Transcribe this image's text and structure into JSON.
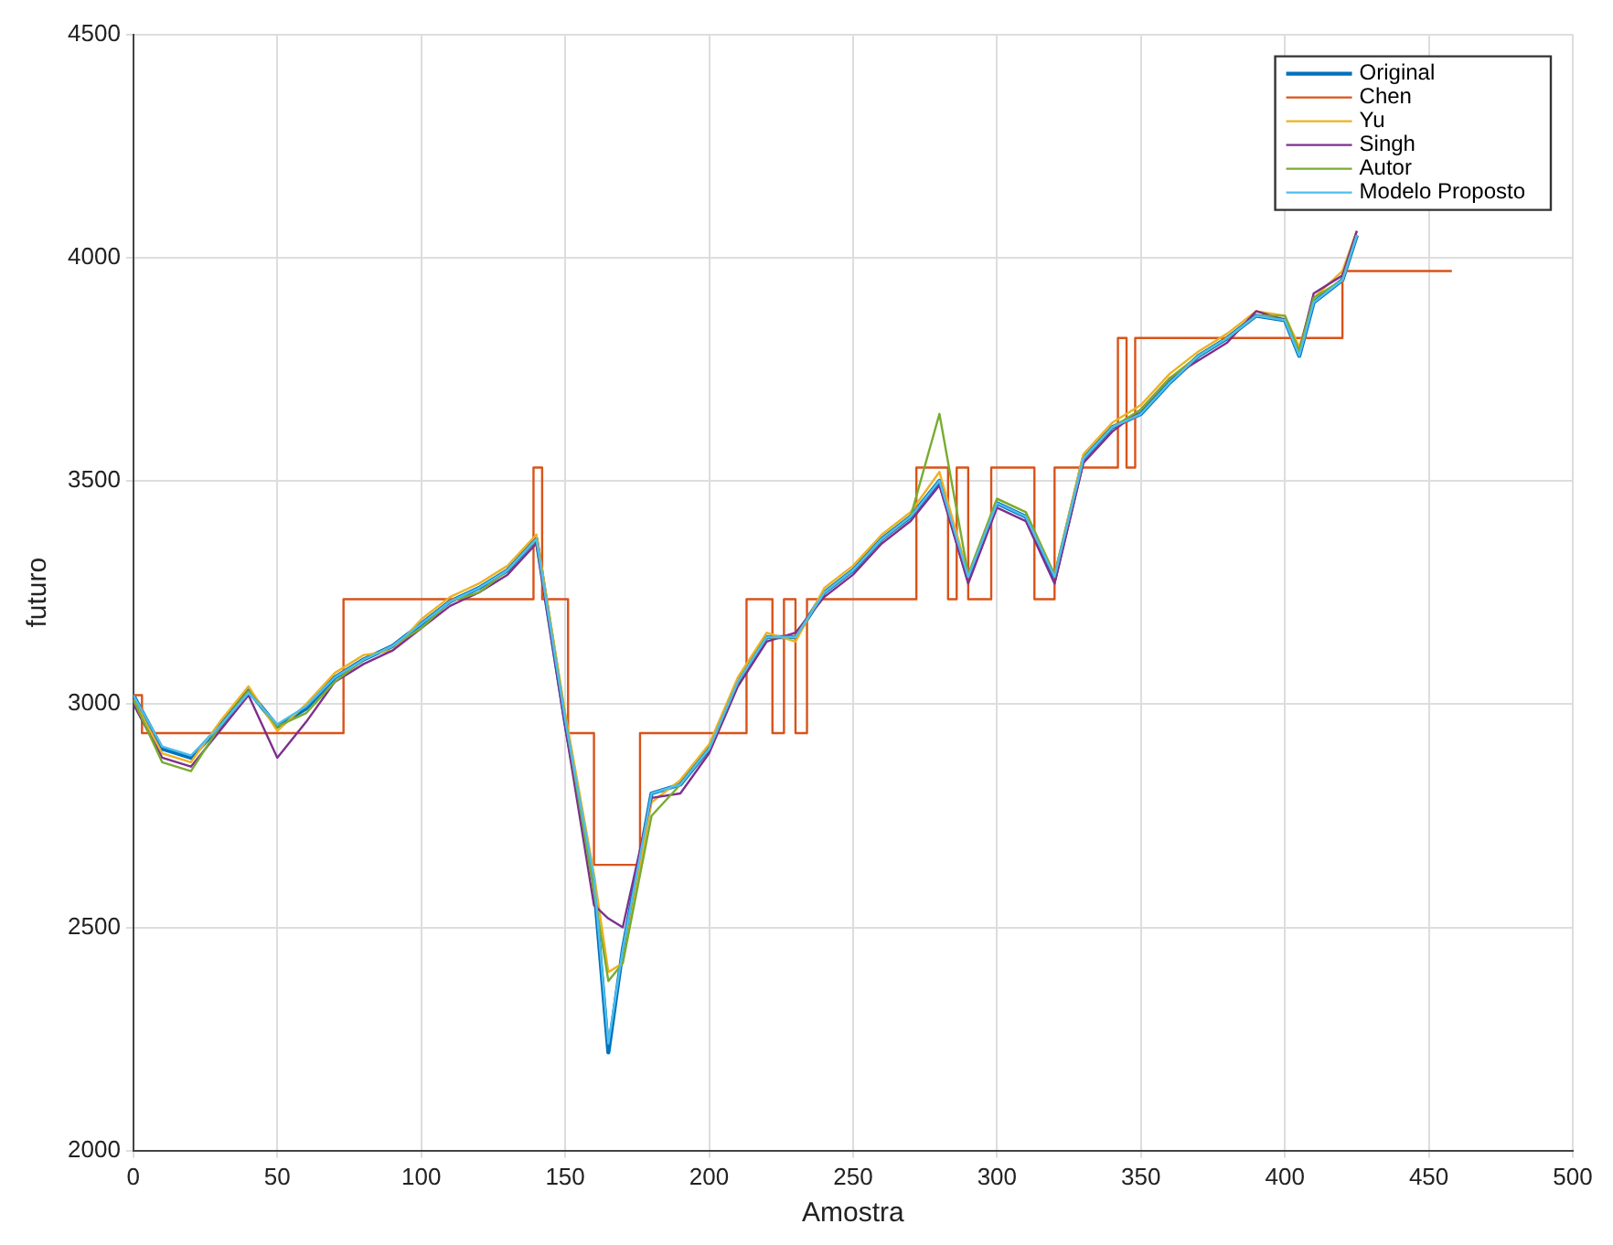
{
  "chart_data": {
    "type": "line",
    "xlabel": "Amostra",
    "ylabel": "futuro",
    "xlim": [
      0,
      500
    ],
    "xticks": [
      0,
      50,
      100,
      150,
      200,
      250,
      300,
      350,
      400,
      450,
      500
    ],
    "ylim": [
      2000,
      4500
    ],
    "yticks": [
      2000,
      2500,
      3000,
      3500,
      4000,
      4500
    ],
    "grid": true,
    "legend": "top right",
    "marker": "none",
    "line_style": "solid",
    "x": [
      0,
      10,
      20,
      30,
      40,
      50,
      60,
      70,
      80,
      90,
      100,
      110,
      120,
      130,
      140,
      150,
      160,
      165,
      170,
      180,
      190,
      200,
      210,
      220,
      230,
      240,
      250,
      260,
      270,
      280,
      290,
      300,
      310,
      320,
      330,
      340,
      350,
      360,
      370,
      380,
      390,
      400,
      405,
      410,
      420,
      425
    ],
    "series": [
      {
        "name": "Original",
        "color": "#0072bd",
        "values": [
          3020,
          2900,
          2880,
          2950,
          3030,
          2950,
          2990,
          3060,
          3100,
          3130,
          3180,
          3230,
          3260,
          3300,
          3370,
          2960,
          2600,
          2220,
          2450,
          2800,
          2820,
          2900,
          3050,
          3150,
          3150,
          3250,
          3300,
          3370,
          3420,
          3500,
          3280,
          3450,
          3420,
          3280,
          3550,
          3620,
          3650,
          3720,
          3780,
          3820,
          3870,
          3860,
          3780,
          3900,
          3950,
          4050
        ]
      },
      {
        "name": "Chen",
        "color": "#d95319",
        "type": "step",
        "x": [
          0,
          3,
          73,
          139,
          142,
          151,
          160,
          176,
          213,
          222,
          226,
          230,
          234,
          272,
          283,
          286,
          290,
          298,
          313,
          320,
          342,
          345,
          348,
          420,
          458
        ],
        "values": [
          3020,
          2935,
          3235,
          3530,
          3235,
          2935,
          2640,
          2935,
          3235,
          2935,
          3235,
          2935,
          3235,
          3530,
          3235,
          3530,
          3235,
          3530,
          3235,
          3530,
          3820,
          3530,
          3820,
          3970,
          3970
        ]
      },
      {
        "name": "Yu",
        "color": "#edb120",
        "values": [
          3010,
          2890,
          2870,
          2960,
          3040,
          2940,
          3000,
          3070,
          3110,
          3120,
          3190,
          3240,
          3270,
          3310,
          3380,
          2980,
          2620,
          2400,
          2420,
          2780,
          2830,
          2910,
          3060,
          3160,
          3140,
          3260,
          3310,
          3380,
          3430,
          3520,
          3290,
          3460,
          3430,
          3290,
          3560,
          3630,
          3670,
          3740,
          3790,
          3830,
          3880,
          3870,
          3800,
          3910,
          3970,
          4060
        ]
      },
      {
        "name": "Singh",
        "color": "#7e2f8e",
        "values": [
          3000,
          2880,
          2860,
          2940,
          3020,
          2880,
          2960,
          3050,
          3090,
          3120,
          3170,
          3220,
          3250,
          3290,
          3360,
          2950,
          2550,
          2520,
          2500,
          2790,
          2800,
          2890,
          3040,
          3140,
          3160,
          3240,
          3290,
          3360,
          3410,
          3490,
          3270,
          3440,
          3410,
          3270,
          3540,
          3610,
          3660,
          3730,
          3770,
          3810,
          3880,
          3860,
          3790,
          3920,
          3960,
          4060
        ]
      },
      {
        "name": "Autor",
        "color": "#77ac30",
        "values": [
          3010,
          2870,
          2850,
          2950,
          3030,
          2950,
          2980,
          3050,
          3100,
          3130,
          3170,
          3230,
          3250,
          3300,
          3370,
          2970,
          2580,
          2380,
          2420,
          2750,
          2820,
          2900,
          3050,
          3150,
          3150,
          3250,
          3300,
          3370,
          3420,
          3650,
          3290,
          3460,
          3430,
          3290,
          3550,
          3620,
          3660,
          3730,
          3780,
          3820,
          3870,
          3870,
          3790,
          3910,
          3950,
          4050
        ]
      },
      {
        "name": "Modelo Proposto",
        "color": "#4dbeee",
        "values": [
          3020,
          2905,
          2885,
          2950,
          3025,
          2955,
          2995,
          3060,
          3100,
          3130,
          3180,
          3230,
          3260,
          3300,
          3370,
          2965,
          2610,
          2240,
          2450,
          2800,
          2820,
          2900,
          3050,
          3150,
          3150,
          3250,
          3300,
          3370,
          3420,
          3500,
          3285,
          3450,
          3420,
          3285,
          3550,
          3620,
          3650,
          3720,
          3780,
          3820,
          3870,
          3860,
          3780,
          3900,
          3950,
          4050
        ]
      }
    ]
  }
}
